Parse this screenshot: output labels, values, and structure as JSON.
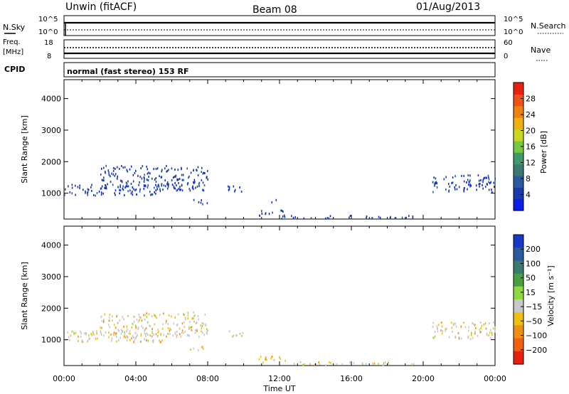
{
  "header": {
    "site": "Unwin (fitACF)",
    "beam": "Beam 08",
    "date": "01/Aug/2013"
  },
  "top_panels": {
    "nsky_label": "N.Sky",
    "nsky_ticks": [
      "10^5",
      "10^0"
    ],
    "nsearch_label": "N.Search",
    "nsearch_ticks": [
      "10^5",
      "10^0"
    ],
    "freq_label": "Freq.",
    "freq_unit": "[MHz]",
    "freq_ticks": [
      "18",
      "8"
    ],
    "nave_label": "Nave",
    "nave_ticks": [
      "60",
      "0"
    ],
    "cpid_label": "CPID",
    "cpid_text": "normal (fast stereo) 153 RF"
  },
  "chart_data": [
    {
      "type": "heatmap",
      "name": "power",
      "ylabel": "Slant Range [km]",
      "xlabel": "",
      "x_ticks": [
        "00:00",
        "04:00",
        "08:00",
        "12:00",
        "16:00",
        "20:00",
        "00:00"
      ],
      "xlim": [
        0,
        24
      ],
      "y_ticks": [
        1000,
        2000,
        3000,
        4000
      ],
      "ylim": [
        180,
        4600
      ],
      "colorbar": {
        "label": "Power [dB]",
        "ticks": [
          4,
          8,
          12,
          16,
          20,
          24,
          28
        ],
        "range": [
          0,
          32
        ],
        "colors": [
          "#0a1ee8",
          "#1a3aa8",
          "#2a5aa0",
          "#3a7a70",
          "#3e9a6a",
          "#78c840",
          "#c8d820",
          "#f0b010",
          "#f08010",
          "#f05010",
          "#e82010"
        ]
      },
      "regions": [
        {
          "x": [
            0.0,
            5.5
          ],
          "y": [
            950,
            1300
          ]
        },
        {
          "x": [
            2.0,
            8.0
          ],
          "y": [
            1100,
            1900
          ]
        },
        {
          "x": [
            7.0,
            8.0
          ],
          "y": [
            680,
            820
          ]
        },
        {
          "x": [
            9.1,
            10.0
          ],
          "y": [
            1050,
            1300
          ]
        },
        {
          "x": [
            10.8,
            12.3
          ],
          "y": [
            300,
            500
          ]
        },
        {
          "x": [
            11.4,
            11.8
          ],
          "y": [
            720,
            820
          ]
        },
        {
          "x": [
            12.0,
            19.5
          ],
          "y": [
            220,
            320
          ]
        },
        {
          "x": [
            20.5,
            24.0
          ],
          "y": [
            1050,
            1600
          ]
        }
      ]
    },
    {
      "type": "heatmap",
      "name": "velocity",
      "ylabel": "Slant Range [km]",
      "xlabel": "Time UT",
      "x_ticks": [
        "00:00",
        "04:00",
        "08:00",
        "12:00",
        "16:00",
        "20:00",
        "00:00"
      ],
      "xlim": [
        0,
        24
      ],
      "y_ticks": [
        1000,
        2000,
        3000,
        4000
      ],
      "ylim": [
        180,
        4600
      ],
      "colorbar": {
        "label": "Velocity [m s⁻¹]",
        "ticks": [
          "200",
          "100",
          "50",
          "15",
          "−15",
          "−50",
          "−100",
          "−200"
        ],
        "colors": [
          "#1838c8",
          "#2a5aa0",
          "#3a7a70",
          "#4aa040",
          "#90d840",
          "#c8c8c8",
          "#f0c010",
          "#f09010",
          "#f06010",
          "#e82010"
        ]
      },
      "regions": [
        {
          "x": [
            0.0,
            5.5
          ],
          "y": [
            950,
            1300
          ]
        },
        {
          "x": [
            2.0,
            8.0
          ],
          "y": [
            1100,
            1900
          ]
        },
        {
          "x": [
            7.0,
            8.0
          ],
          "y": [
            680,
            820
          ]
        },
        {
          "x": [
            9.1,
            10.0
          ],
          "y": [
            1050,
            1300
          ]
        },
        {
          "x": [
            10.8,
            12.3
          ],
          "y": [
            300,
            500
          ]
        },
        {
          "x": [
            12.0,
            19.5
          ],
          "y": [
            220,
            320
          ]
        },
        {
          "x": [
            20.5,
            24.0
          ],
          "y": [
            1050,
            1600
          ]
        }
      ]
    }
  ]
}
